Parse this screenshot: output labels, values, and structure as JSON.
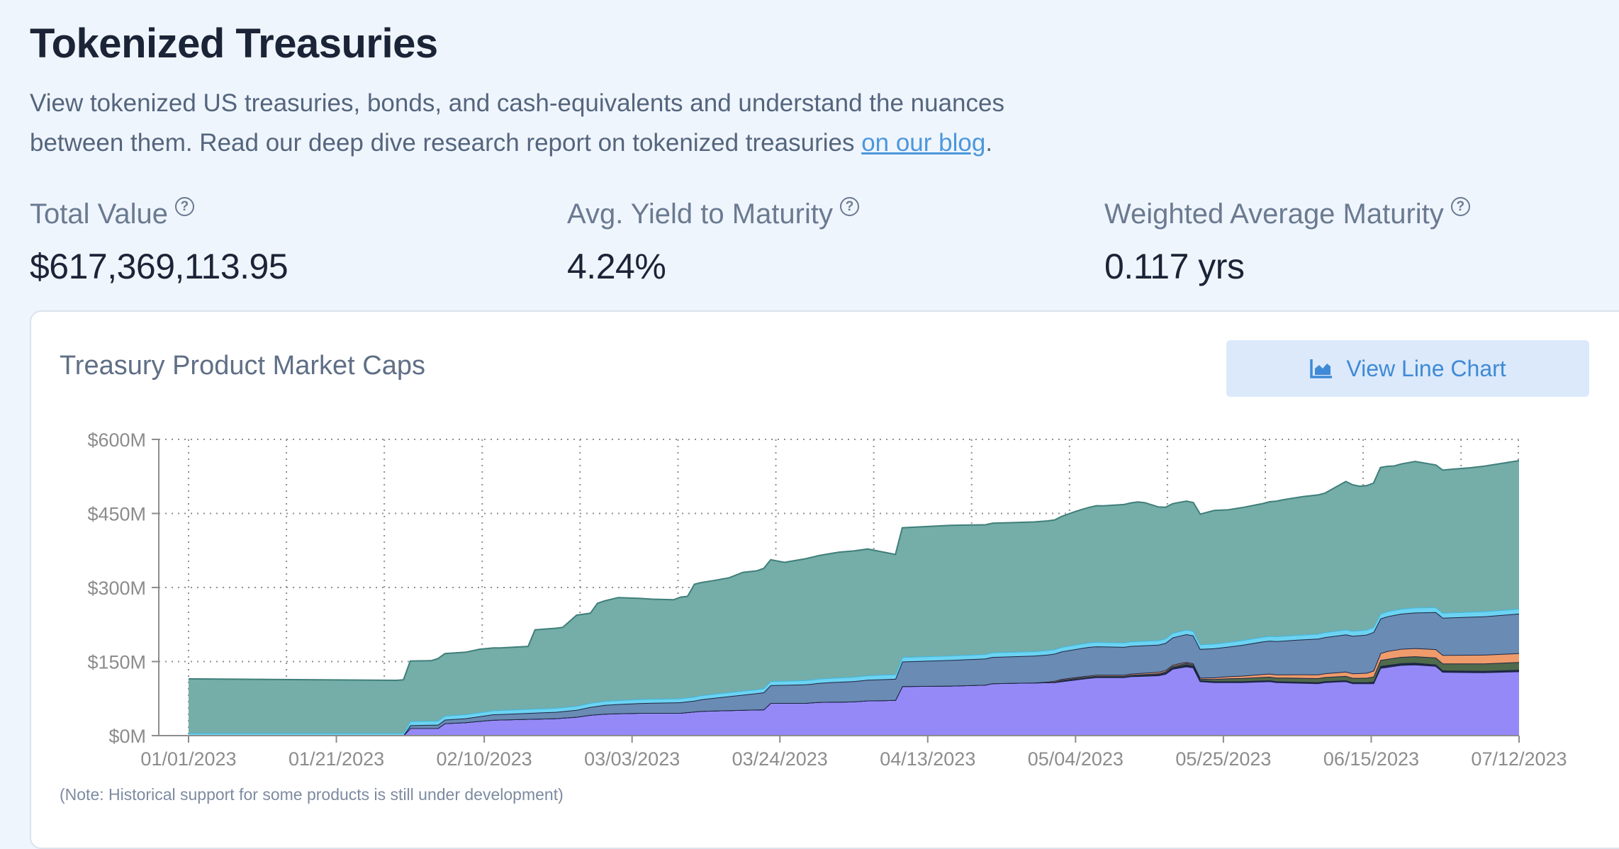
{
  "header": {
    "title": "Tokenized Treasuries",
    "description": "View tokenized US treasuries, bonds, and cash-equivalents and understand the nuances between them. Read our deep dive research report on tokenized treasuries ",
    "blog_link": "on our blog",
    "description_end": "."
  },
  "stats": [
    {
      "label": "Total Value",
      "value": "$617,369,113.95",
      "help": "?"
    },
    {
      "label": "Avg. Yield to Maturity",
      "value": "4.24%",
      "help": "?"
    },
    {
      "label": "Weighted Average Maturity",
      "value": "0.117 yrs",
      "help": "?"
    }
  ],
  "card": {
    "title": "Treasury Product Market Caps",
    "button_label": "View Line Chart",
    "note": "(Note: Historical support for some products is still under development)"
  },
  "colors": {
    "purple": "#9589f7",
    "navy": "#1d2644",
    "olive": "#4f6a4c",
    "orange": "#ef9b6b",
    "steel": "#6a8bb3",
    "cyan": "#6dd3f2",
    "teal": "#75ada8"
  },
  "chart_data": {
    "type": "area",
    "stacked": true,
    "x_ticks": [
      "01/01/2023",
      "01/21/2023",
      "02/10/2023",
      "03/03/2023",
      "03/24/2023",
      "04/13/2023",
      "05/04/2023",
      "05/25/2023",
      "06/15/2023",
      "07/12/2023"
    ],
    "y_ticks": [
      "$0M",
      "$150M",
      "$300M",
      "$450M",
      "$600M"
    ],
    "ylim": [
      0,
      600
    ],
    "xlim_days": [
      0,
      192
    ],
    "grid": true,
    "series": [
      {
        "name": "purple",
        "color": "#9589f7",
        "points": [
          [
            0,
            0
          ],
          [
            31,
            0
          ],
          [
            32,
            15
          ],
          [
            36,
            15
          ],
          [
            37,
            25
          ],
          [
            40,
            27
          ],
          [
            44,
            32
          ],
          [
            53,
            35
          ],
          [
            56,
            38
          ],
          [
            58,
            42
          ],
          [
            60,
            44
          ],
          [
            62,
            45
          ],
          [
            65,
            46
          ],
          [
            71,
            46
          ],
          [
            74,
            50
          ],
          [
            83,
            53
          ],
          [
            84,
            66
          ],
          [
            89,
            66
          ],
          [
            91,
            68
          ],
          [
            96,
            69
          ],
          [
            98,
            71
          ],
          [
            102,
            72
          ],
          [
            103,
            100
          ],
          [
            110,
            101
          ],
          [
            115,
            103
          ],
          [
            116,
            106
          ],
          [
            125,
            108
          ],
          [
            129,
            115
          ],
          [
            131,
            118
          ],
          [
            135,
            118
          ],
          [
            136,
            120
          ],
          [
            140,
            122
          ],
          [
            141,
            125
          ],
          [
            142,
            135
          ],
          [
            144,
            140
          ],
          [
            145,
            138
          ],
          [
            146,
            110
          ],
          [
            148,
            108
          ],
          [
            152,
            108
          ],
          [
            156,
            110
          ],
          [
            157,
            108
          ],
          [
            160,
            107
          ],
          [
            163,
            106
          ],
          [
            164,
            108
          ],
          [
            167,
            110
          ],
          [
            168,
            106
          ],
          [
            169,
            106
          ],
          [
            171,
            106
          ],
          [
            172,
            137
          ],
          [
            175,
            143
          ],
          [
            177,
            144
          ],
          [
            180,
            141
          ],
          [
            181,
            129
          ],
          [
            187,
            128
          ],
          [
            192,
            130
          ]
        ]
      },
      {
        "name": "navy",
        "color": "#1d2644",
        "points": [
          [
            0,
            0
          ],
          [
            125,
            0
          ],
          [
            126,
            1
          ],
          [
            130,
            1
          ],
          [
            135,
            1
          ],
          [
            140,
            2
          ],
          [
            144,
            4
          ],
          [
            146,
            2
          ],
          [
            160,
            2
          ],
          [
            170,
            2
          ],
          [
            172,
            4
          ],
          [
            180,
            3
          ],
          [
            192,
            3
          ]
        ]
      },
      {
        "name": "olive",
        "color": "#4f6a4c",
        "points": [
          [
            0,
            0
          ],
          [
            124,
            0
          ],
          [
            126,
            2
          ],
          [
            140,
            2
          ],
          [
            143,
            3
          ],
          [
            146,
            3
          ],
          [
            150,
            6
          ],
          [
            160,
            8
          ],
          [
            170,
            9
          ],
          [
            172,
            12
          ],
          [
            180,
            14
          ],
          [
            192,
            16
          ]
        ]
      },
      {
        "name": "orange",
        "color": "#ef9b6b",
        "points": [
          [
            0,
            0
          ],
          [
            122,
            0
          ],
          [
            125,
            2
          ],
          [
            135,
            2
          ],
          [
            140,
            3
          ],
          [
            145,
            2
          ],
          [
            150,
            4
          ],
          [
            155,
            6
          ],
          [
            160,
            7
          ],
          [
            165,
            8
          ],
          [
            170,
            10
          ],
          [
            173,
            16
          ],
          [
            180,
            17
          ],
          [
            192,
            18
          ]
        ]
      },
      {
        "name": "steel",
        "color": "#6a8bb3",
        "points": [
          [
            0,
            0
          ],
          [
            31,
            0
          ],
          [
            32,
            6
          ],
          [
            40,
            8
          ],
          [
            44,
            11
          ],
          [
            53,
            13
          ],
          [
            56,
            14
          ],
          [
            60,
            18
          ],
          [
            66,
            20
          ],
          [
            73,
            22
          ],
          [
            76,
            26
          ],
          [
            82,
            33
          ],
          [
            84,
            36
          ],
          [
            90,
            38
          ],
          [
            93,
            40
          ],
          [
            98,
            42
          ],
          [
            102,
            43
          ],
          [
            103,
            50
          ],
          [
            110,
            52
          ],
          [
            120,
            54
          ],
          [
            125,
            55
          ],
          [
            130,
            58
          ],
          [
            140,
            55
          ],
          [
            141,
            55
          ],
          [
            144,
            56
          ],
          [
            146,
            58
          ],
          [
            150,
            60
          ],
          [
            155,
            66
          ],
          [
            160,
            70
          ],
          [
            165,
            74
          ],
          [
            171,
            78
          ],
          [
            172,
            70
          ],
          [
            177,
            72
          ],
          [
            180,
            75
          ],
          [
            185,
            77
          ],
          [
            192,
            80
          ]
        ]
      },
      {
        "name": "cyan",
        "color": "#6dd3f2",
        "points": [
          [
            0,
            5
          ],
          [
            31,
            5
          ],
          [
            32,
            8
          ],
          [
            44,
            8
          ],
          [
            60,
            8
          ],
          [
            80,
            8
          ],
          [
            100,
            9
          ],
          [
            140,
            9
          ],
          [
            170,
            10
          ],
          [
            192,
            10
          ]
        ]
      },
      {
        "name": "teal",
        "color": "#75ada8",
        "points": [
          [
            0,
            110
          ],
          [
            30,
            107
          ],
          [
            31,
            108
          ],
          [
            32,
            122
          ],
          [
            35,
            122
          ],
          [
            36,
            126
          ],
          [
            40,
            126
          ],
          [
            42,
            128
          ],
          [
            45,
            126
          ],
          [
            49,
            127
          ],
          [
            50,
            160
          ],
          [
            54,
            162
          ],
          [
            56,
            184
          ],
          [
            58,
            182
          ],
          [
            59,
            200
          ],
          [
            62,
            208
          ],
          [
            67,
            202
          ],
          [
            70,
            200
          ],
          [
            71,
            205
          ],
          [
            72,
            205
          ],
          [
            73,
            228
          ],
          [
            76,
            230
          ],
          [
            78,
            232
          ],
          [
            80,
            240
          ],
          [
            82,
            240
          ],
          [
            84,
            246
          ],
          [
            86,
            240
          ],
          [
            90,
            248
          ],
          [
            94,
            254
          ],
          [
            98,
            256
          ],
          [
            102,
            243
          ],
          [
            103,
            262
          ],
          [
            110,
            264
          ],
          [
            115,
            262
          ],
          [
            116,
            262
          ],
          [
            125,
            262
          ],
          [
            128,
            270
          ],
          [
            131,
            276
          ],
          [
            132,
            276
          ],
          [
            137,
            282
          ],
          [
            138,
            280
          ],
          [
            140,
            270
          ],
          [
            142,
            262
          ],
          [
            145,
            260
          ],
          [
            146,
            264
          ],
          [
            148,
            270
          ],
          [
            150,
            268
          ],
          [
            155,
            270
          ],
          [
            158,
            276
          ],
          [
            161,
            280
          ],
          [
            164,
            282
          ],
          [
            166,
            294
          ],
          [
            167,
            300
          ],
          [
            169,
            292
          ],
          [
            171,
            292
          ],
          [
            172,
            296
          ],
          [
            174,
            292
          ],
          [
            177,
            296
          ],
          [
            180,
            288
          ],
          [
            182,
            290
          ],
          [
            185,
            292
          ],
          [
            192,
            300
          ]
        ]
      }
    ]
  }
}
